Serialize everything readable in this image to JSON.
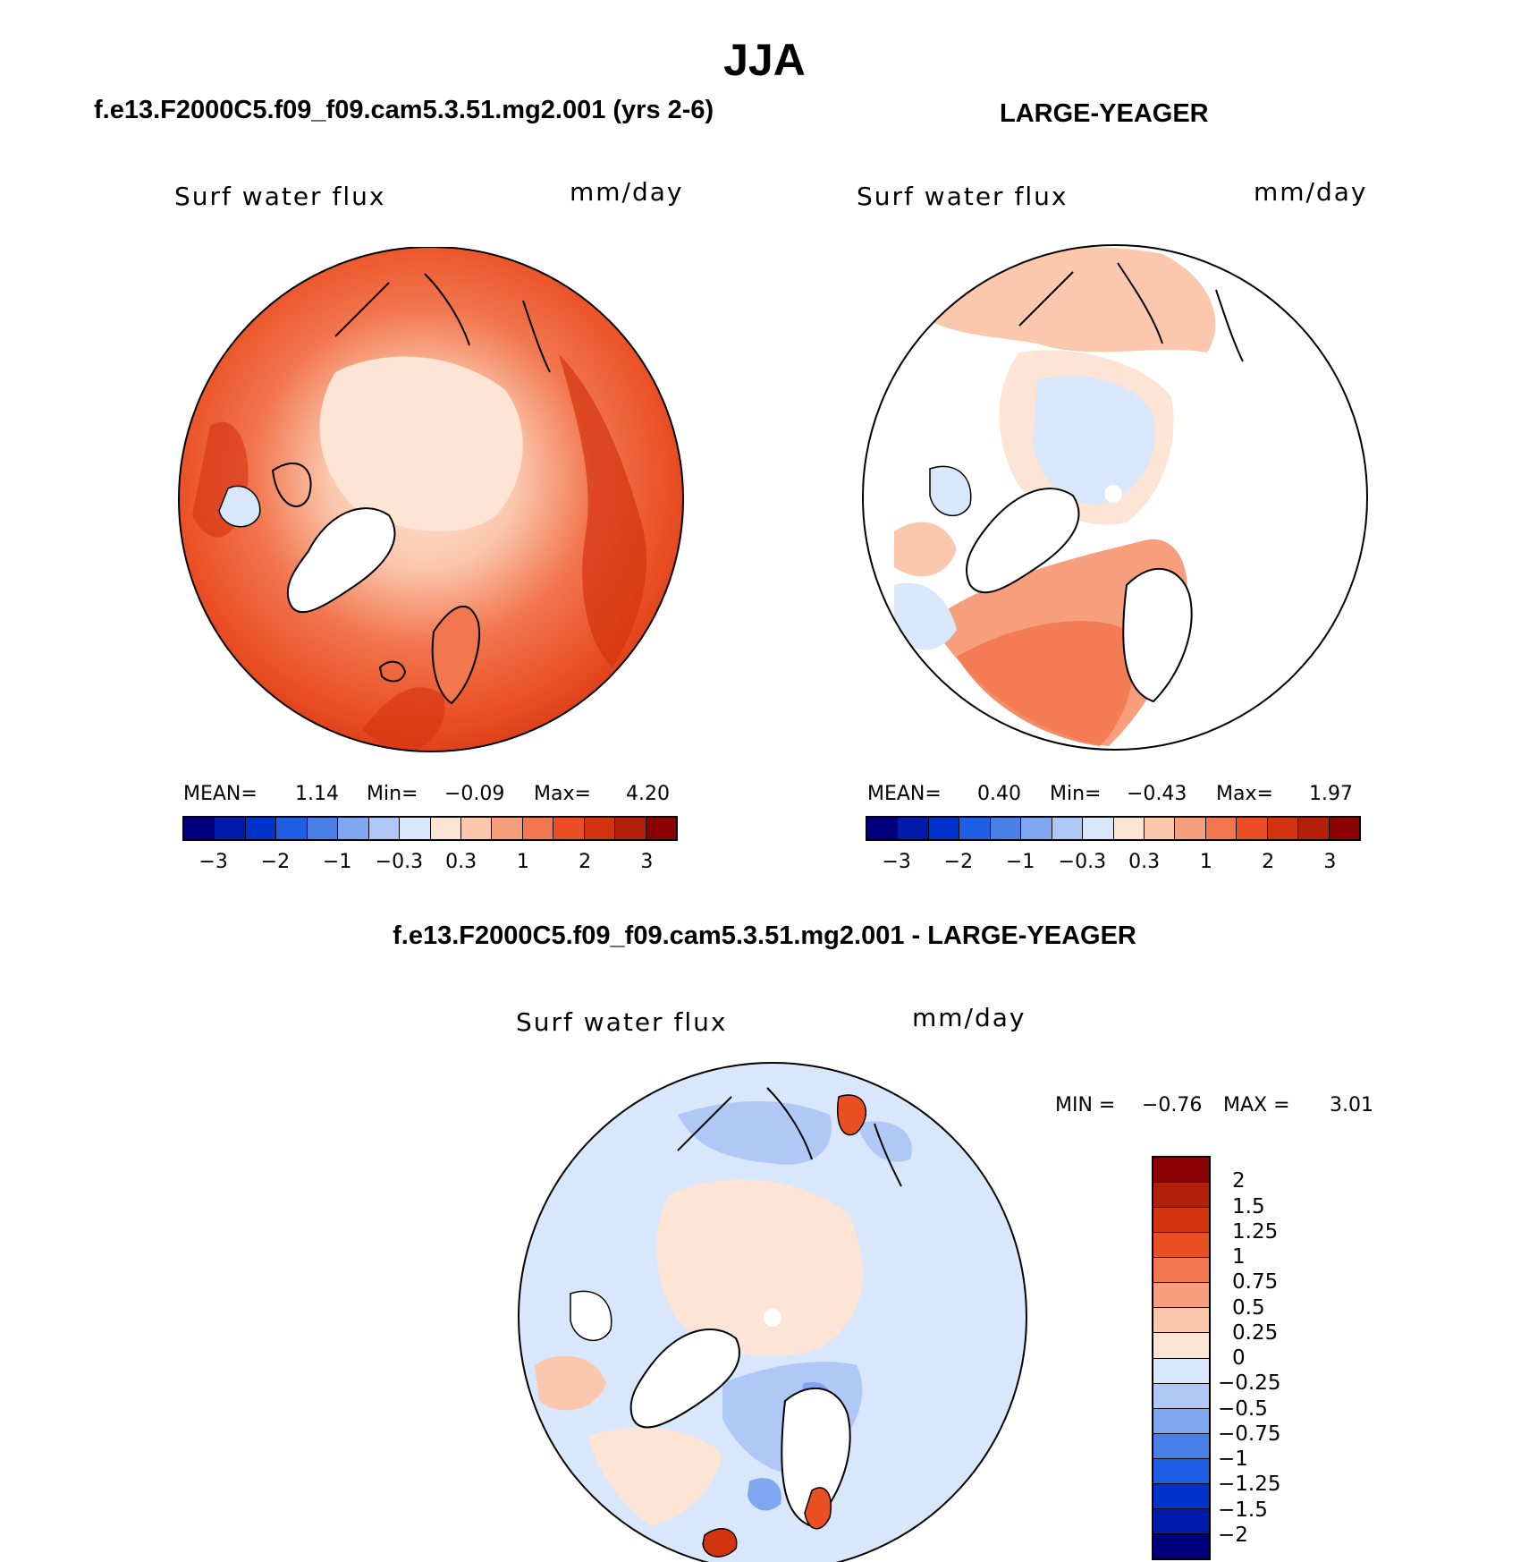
{
  "title": "JJA",
  "panels": {
    "model": {
      "title": "f.e13.F2000C5.f09_f09.cam5.3.51.mg2.001 (yrs 2-6)",
      "variable": "Surf water flux",
      "units": "mm/day",
      "mean_label": "MEAN=",
      "mean": "1.14",
      "min_label": "Min=",
      "min": "−0.09",
      "max_label": "Max=",
      "max": "4.20"
    },
    "obs": {
      "title": "LARGE-YEAGER",
      "variable": "Surf water flux",
      "units": "mm/day",
      "mean_label": "MEAN=",
      "mean": "0.40",
      "min_label": "Min=",
      "min": "−0.43",
      "max_label": "Max=",
      "max": "1.97"
    },
    "diff": {
      "title": "f.e13.F2000C5.f09_f09.cam5.3.51.mg2.001 - LARGE-YEAGER",
      "variable": "Surf water flux",
      "units": "mm/day",
      "min_label": "MIN =",
      "min": "−0.76",
      "max_label": "MAX =",
      "max": "3.01"
    }
  },
  "colorbar_top": {
    "ticks": [
      "−3",
      "−2",
      "−1",
      "−0.3",
      "0.3",
      "1",
      "2",
      "3"
    ],
    "colors": [
      "#00007f",
      "#001aaa",
      "#0033cc",
      "#1f5fe6",
      "#4a7fe8",
      "#7fa6f0",
      "#b0c8f5",
      "#d8e7fb",
      "#fde4d4",
      "#fbc7ad",
      "#f79f7d",
      "#f2764e",
      "#ea4f24",
      "#d33410",
      "#b3200a",
      "#8b0000"
    ]
  },
  "colorbar_diff": {
    "ticks": [
      "2",
      "1.5",
      "1.25",
      "1",
      "0.75",
      "0.5",
      "0.25",
      "0",
      "−0.25",
      "−0.5",
      "−0.75",
      "−1",
      "−1.25",
      "−1.5",
      "−2"
    ],
    "colors": [
      "#8b0000",
      "#b3200a",
      "#d33410",
      "#ea4f24",
      "#f2764e",
      "#f79f7d",
      "#fbc7ad",
      "#fde4d4",
      "#d8e7fb",
      "#b0c8f5",
      "#7fa6f0",
      "#4a7fe8",
      "#1f5fe6",
      "#0033cc",
      "#001aaa",
      "#00007f"
    ]
  }
}
